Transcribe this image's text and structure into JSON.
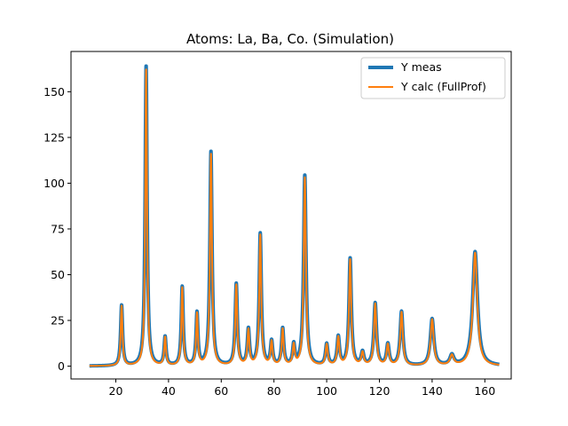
{
  "chart_data": {
    "type": "line",
    "title": "Atoms: La, Ba, Co. (Simulation)",
    "xlabel": "",
    "ylabel": "",
    "xlim": [
      3,
      170
    ],
    "ylim": [
      -7,
      172
    ],
    "xticks": [
      20,
      40,
      60,
      80,
      100,
      120,
      140,
      160
    ],
    "yticks": [
      0,
      25,
      50,
      75,
      100,
      125,
      150
    ],
    "grid": false,
    "legend_position": "top-right",
    "x_range": [
      10,
      165.5
    ],
    "baseline": 0,
    "peaks": [
      {
        "x": 22.2,
        "y": 33,
        "width": 0.45
      },
      {
        "x": 31.5,
        "y": 164,
        "width": 0.45
      },
      {
        "x": 38.7,
        "y": 15.5,
        "width": 0.45
      },
      {
        "x": 45.2,
        "y": 43,
        "width": 0.45
      },
      {
        "x": 50.8,
        "y": 28.5,
        "width": 0.45
      },
      {
        "x": 56.1,
        "y": 117,
        "width": 0.5
      },
      {
        "x": 65.7,
        "y": 44.5,
        "width": 0.5
      },
      {
        "x": 70.3,
        "y": 19.5,
        "width": 0.5
      },
      {
        "x": 74.8,
        "y": 72,
        "width": 0.5
      },
      {
        "x": 79.1,
        "y": 13,
        "width": 0.5
      },
      {
        "x": 83.3,
        "y": 20,
        "width": 0.5
      },
      {
        "x": 87.5,
        "y": 11,
        "width": 0.5
      },
      {
        "x": 91.7,
        "y": 104,
        "width": 0.55
      },
      {
        "x": 100.0,
        "y": 11.5,
        "width": 0.55
      },
      {
        "x": 104.4,
        "y": 15.5,
        "width": 0.55
      },
      {
        "x": 108.9,
        "y": 58.5,
        "width": 0.55
      },
      {
        "x": 113.6,
        "y": 7,
        "width": 0.6
      },
      {
        "x": 118.4,
        "y": 34,
        "width": 0.6
      },
      {
        "x": 123.2,
        "y": 11.5,
        "width": 0.6
      },
      {
        "x": 128.4,
        "y": 29.5,
        "width": 0.65
      },
      {
        "x": 140.0,
        "y": 25.5,
        "width": 0.8
      },
      {
        "x": 147.5,
        "y": 5.5,
        "width": 0.9
      },
      {
        "x": 156.3,
        "y": 62.5,
        "width": 1.1
      }
    ],
    "series": [
      {
        "name": "Y meas",
        "color": "#1f77b4",
        "line_width": 4
      },
      {
        "name": "Y calc (FullProf)",
        "color": "#ff7f0e",
        "line_width": 2
      }
    ]
  }
}
